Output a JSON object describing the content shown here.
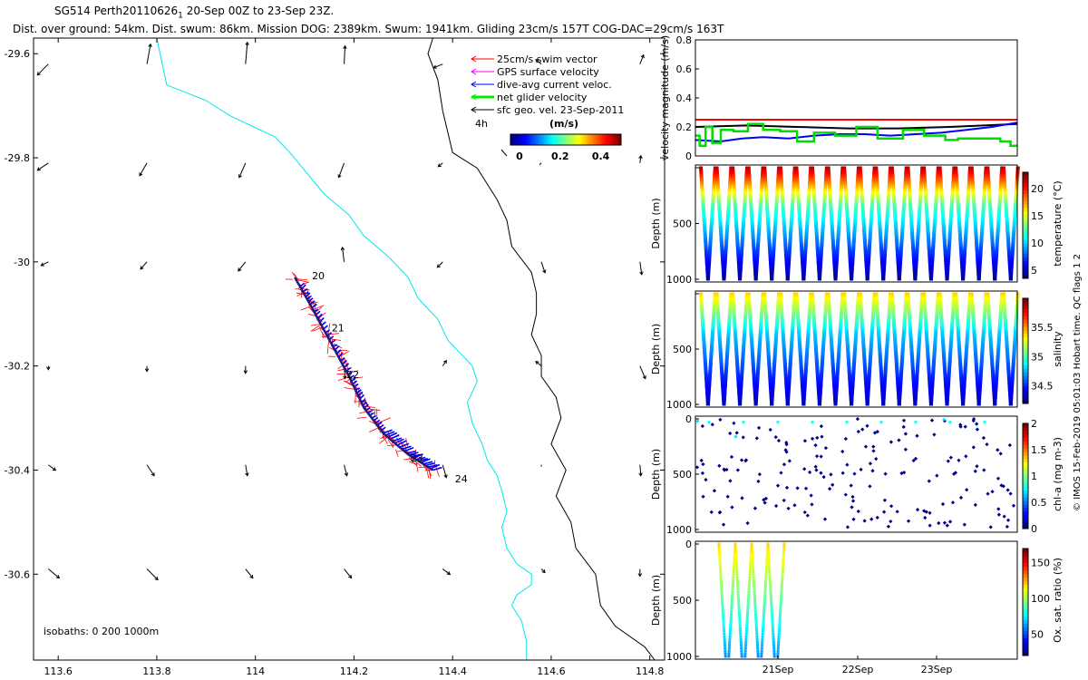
{
  "header": {
    "title_main": "SG514 Perth20110626",
    "title_sub": "1",
    "title_rest": " 20-Sep 00Z to 23-Sep 23Z.",
    "stats": "Dist. over ground: 54km. Dist. swum: 86km. Mission DOG: 2389km. Swum: 1941km. Gliding 23cm/s 157T COG-DAC=29cm/s 163T"
  },
  "map": {
    "xticks": [
      "113.6",
      "113.8",
      "114",
      "114.2",
      "114.4",
      "114.6",
      "114.8"
    ],
    "yticks": [
      "-29.6",
      "-29.8",
      "-30",
      "-30.2",
      "-30.4",
      "-30.6"
    ],
    "xlim": [
      113.55,
      114.83
    ],
    "ylim": [
      -30.765,
      -29.57
    ],
    "isobaths_label": "isobaths: 0   200  1000m",
    "day_labels": [
      "20",
      "21",
      "22",
      "23",
      "24"
    ],
    "legend": {
      "items": [
        {
          "label": "25cm/s swim vector",
          "color": "#ff0000"
        },
        {
          "label": "GPS surface velocity",
          "color": "#ff00ff"
        },
        {
          "label": "dive-avg current veloc.",
          "color": "#0000ff"
        },
        {
          "label": "net glider velocity",
          "color": "#00ee00"
        },
        {
          "label": "sfc geo. vel. 23-Sep-2011",
          "color": "#000000"
        }
      ],
      "duration": "4h",
      "units": "(m/s)",
      "colorbar_ticks": [
        "0",
        "0.2",
        "0.4"
      ]
    }
  },
  "chart_data": [
    {
      "type": "line",
      "ylabel": "velocity magnitude (m/s)",
      "ylim": [
        0,
        0.8
      ],
      "yticks": [
        "0",
        "0.2",
        "0.4",
        "0.6",
        "0.8"
      ],
      "xlim": [
        0,
        3.8
      ],
      "series": [
        {
          "color": "#ff0000",
          "x": [
            0,
            3.8
          ],
          "values": [
            0.25,
            0.25
          ]
        },
        {
          "color": "#000000",
          "x": [
            0,
            0.6,
            1.2,
            1.8,
            2.4,
            3.0,
            3.8
          ],
          "values": [
            0.2,
            0.21,
            0.2,
            0.19,
            0.19,
            0.2,
            0.22
          ]
        },
        {
          "color": "#0000ff",
          "x": [
            0,
            0.3,
            0.55,
            0.8,
            1.1,
            1.4,
            1.7,
            2.0,
            2.3,
            2.6,
            2.9,
            3.2,
            3.5,
            3.8
          ],
          "values": [
            0.11,
            0.1,
            0.12,
            0.13,
            0.12,
            0.14,
            0.15,
            0.15,
            0.14,
            0.15,
            0.16,
            0.18,
            0.2,
            0.23
          ]
        },
        {
          "color": "#00dd00",
          "step": true,
          "x": [
            0,
            0.05,
            0.12,
            0.2,
            0.3,
            0.45,
            0.62,
            0.8,
            1.0,
            1.2,
            1.4,
            1.65,
            1.9,
            2.15,
            2.45,
            2.7,
            2.95,
            3.1,
            3.4,
            3.6,
            3.72,
            3.8
          ],
          "values": [
            0.14,
            0.07,
            0.2,
            0.09,
            0.18,
            0.17,
            0.22,
            0.18,
            0.17,
            0.1,
            0.16,
            0.14,
            0.2,
            0.12,
            0.18,
            0.14,
            0.11,
            0.12,
            0.12,
            0.1,
            0.07,
            0.07
          ]
        }
      ]
    },
    {
      "type": "scatter",
      "ylabel": "Depth (m)",
      "ylim": [
        0,
        1000
      ],
      "yticks": [
        "",
        "500",
        "1000"
      ],
      "cycles": 20,
      "colorbar_label": "temperature (°C)",
      "colorbar_range": [
        3.5,
        23
      ],
      "colorbar_ticks": [
        "5",
        "10",
        "15",
        "20"
      ],
      "colorbar_values": [
        5,
        10,
        15,
        20
      ],
      "surface_value": 22,
      "deep_value": 4
    },
    {
      "type": "scatter",
      "ylabel": "Depth (m)",
      "ylim": [
        0,
        1000
      ],
      "yticks": [
        "",
        "500",
        "1000"
      ],
      "cycles": 20,
      "colorbar_label": "salinity",
      "colorbar_range": [
        34.2,
        36
      ],
      "colorbar_ticks": [
        "34.5",
        "35",
        "35.5"
      ],
      "colorbar_values": [
        34.5,
        35,
        35.5
      ],
      "surface_value": 35.4,
      "deep_value": 34.3
    },
    {
      "type": "scatter",
      "ylabel": "Depth (m)",
      "ylim": [
        0,
        1000
      ],
      "yticks": [
        "0",
        "500",
        "1000"
      ],
      "cycles": 20,
      "colorbar_label": "chl-a (mg m-3)",
      "colorbar_range": [
        0,
        2
      ],
      "colorbar_ticks": [
        "0",
        "0.5",
        "1",
        "1.5",
        "2"
      ],
      "colorbar_values": [
        0,
        0.5,
        1,
        1.5,
        2
      ]
    },
    {
      "type": "scatter",
      "ylabel": "Depth (m)",
      "ylim": [
        0,
        1000
      ],
      "yticks": [
        "0",
        "500",
        "1000"
      ],
      "cycles": 4,
      "xticks": [
        "21Sep",
        "22Sep",
        "23Sep"
      ],
      "colorbar_label": "Ox. sat. ratio (%)",
      "colorbar_range": [
        20,
        170
      ],
      "colorbar_ticks": [
        "50",
        "100",
        "150"
      ],
      "colorbar_values": [
        50,
        100,
        150
      ]
    }
  ],
  "footer": {
    "credit": "© IMOS 15-Feb-2019 05:01:03 Hobart time. QC flags 1  2"
  }
}
